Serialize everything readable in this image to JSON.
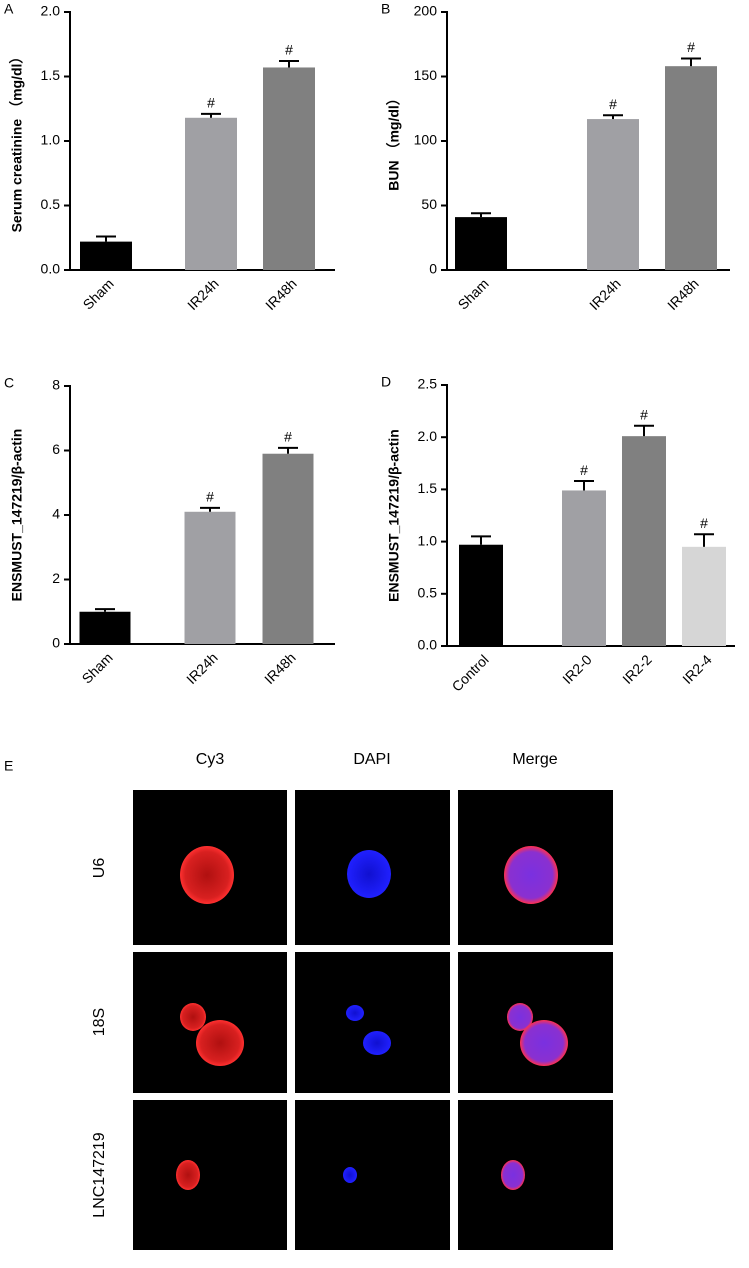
{
  "chart_data": [
    {
      "type": "bar",
      "panel": "A",
      "ylabel": "Serum creatinine （mg/dl）",
      "categories": [
        "Sham",
        "IR24h",
        "IR48h"
      ],
      "values": [
        0.22,
        1.18,
        1.57
      ],
      "errors": [
        0.04,
        0.03,
        0.05
      ],
      "significance": [
        null,
        "#",
        "#"
      ],
      "colors": [
        "#000000",
        "#a0a0a4",
        "#808080"
      ],
      "ylim": [
        0,
        2
      ],
      "yticks": [
        {
          "value": 0,
          "label": "0.0"
        },
        0.5,
        {
          "value": 1,
          "label": "1.0"
        },
        1.5,
        {
          "value": 2,
          "label": "2.0"
        }
      ]
    },
    {
      "type": "bar",
      "panel": "B",
      "ylabel": "BUN （mg/dl）",
      "categories": [
        "Sham",
        "IR24h",
        "IR48h"
      ],
      "values": [
        41,
        117,
        158
      ],
      "errors": [
        3,
        3,
        6
      ],
      "significance": [
        null,
        "#",
        "#"
      ],
      "colors": [
        "#000000",
        "#a0a0a4",
        "#808080"
      ],
      "ylim": [
        0,
        200
      ],
      "yticks": [
        0,
        50,
        100,
        150,
        200
      ]
    },
    {
      "type": "bar",
      "panel": "C",
      "ylabel": "ENSMUST_147219/β-actin",
      "categories": [
        "Sham",
        "IR24h",
        "IR48h"
      ],
      "values": [
        1.0,
        4.1,
        5.9
      ],
      "errors": [
        0.08,
        0.12,
        0.18
      ],
      "significance": [
        null,
        "#",
        "#"
      ],
      "colors": [
        "#000000",
        "#a0a0a4",
        "#808080"
      ],
      "ylim": [
        0,
        8
      ],
      "yticks": [
        0,
        2,
        4,
        6,
        8
      ]
    },
    {
      "type": "bar",
      "panel": "D",
      "ylabel": "ENSMUST_147219/β-actin",
      "categories": [
        "Control",
        "IR2-0",
        "IR2-2",
        "IR2-4"
      ],
      "values": [
        0.97,
        1.49,
        2.01,
        0.95
      ],
      "errors": [
        0.08,
        0.09,
        0.1,
        0.12
      ],
      "significance": [
        null,
        "#",
        "#",
        "#"
      ],
      "colors": [
        "#000000",
        "#a0a0a4",
        "#808080",
        "#d6d6d6"
      ],
      "ylim": [
        0,
        2.5
      ],
      "yticks": [
        {
          "value": 0,
          "label": "0.0"
        },
        0.5,
        {
          "value": 1,
          "label": "1.0"
        },
        1.5,
        {
          "value": 2,
          "label": "2.0"
        },
        2.5
      ]
    }
  ],
  "image_panel": {
    "label": "E",
    "columns": [
      "Cy3",
      "DAPI",
      "Merge"
    ],
    "rows": [
      "U6",
      "18S",
      "LNC147219"
    ]
  }
}
